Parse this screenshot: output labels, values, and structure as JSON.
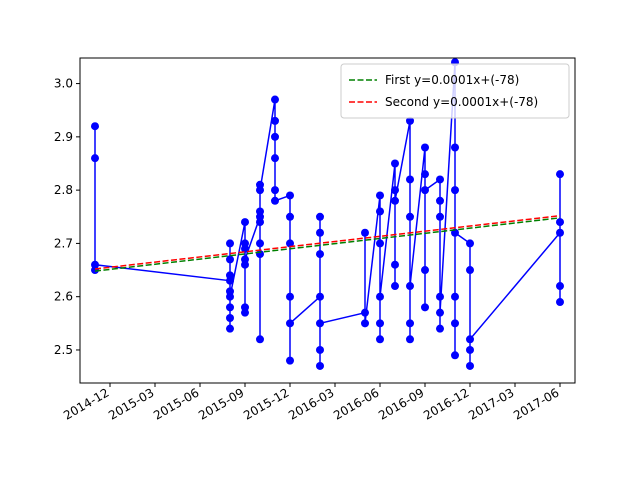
{
  "chart_data": {
    "type": "line",
    "xlim": [
      "2014-10",
      "2017-07"
    ],
    "ylim": [
      2.438,
      3.048
    ],
    "xticks": [
      "2014-12",
      "2015-03",
      "2015-06",
      "2015-09",
      "2015-12",
      "2016-03",
      "2016-06",
      "2016-09",
      "2016-12",
      "2017-03",
      "2017-06"
    ],
    "yticks": [
      2.5,
      2.6,
      2.7,
      2.8,
      2.9,
      {
        "value": 3,
        "label": "3.0"
      }
    ],
    "legend": "upper right",
    "series": [
      {
        "name": null,
        "color": "#0000ff",
        "style": "solid",
        "marker": true,
        "x": [
          "2014-11",
          "2014-11",
          "2014-11",
          "2014-11",
          "2015-08",
          "2015-08",
          "2015-08",
          "2015-08",
          "2015-08",
          "2015-08",
          "2015-08",
          "2015-08",
          "2015-08",
          "2015-09",
          "2015-09",
          "2015-09",
          "2015-09",
          "2015-09",
          "2015-09",
          "2015-09",
          "2015-10",
          "2015-10",
          "2015-10",
          "2015-10",
          "2015-10",
          "2015-10",
          "2015-10",
          "2015-10",
          "2015-11",
          "2015-11",
          "2015-11",
          "2015-11",
          "2015-11",
          "2015-11",
          "2015-12",
          "2015-12",
          "2015-12",
          "2015-12",
          "2015-12",
          "2015-12",
          "2016-02",
          "2016-02",
          "2016-02",
          "2016-02",
          "2016-02",
          "2016-02",
          "2016-02",
          "2016-05",
          "2016-05",
          "2016-05",
          "2016-06",
          "2016-06",
          "2016-06",
          "2016-06",
          "2016-06",
          "2016-06",
          "2016-07",
          "2016-07",
          "2016-07",
          "2016-07",
          "2016-07",
          "2016-08",
          "2016-08",
          "2016-08",
          "2016-08",
          "2016-08",
          "2016-08",
          "2016-09",
          "2016-09",
          "2016-09",
          "2016-09",
          "2016-09",
          "2016-10",
          "2016-10",
          "2016-10",
          "2016-10",
          "2016-10",
          "2016-10",
          "2016-11",
          "2016-11",
          "2016-11",
          "2016-11",
          "2016-11",
          "2016-11",
          "2016-11",
          "2016-12",
          "2016-12",
          "2016-12",
          "2016-12",
          "2016-12",
          "2017-06",
          "2017-06",
          "2017-06",
          "2017-06",
          "2017-06"
        ],
        "values": [
          2.86,
          2.92,
          2.65,
          2.66,
          2.63,
          2.64,
          2.67,
          2.7,
          2.61,
          2.54,
          2.58,
          2.56,
          2.6,
          2.74,
          2.66,
          2.69,
          2.57,
          2.58,
          2.7,
          2.67,
          2.75,
          2.81,
          2.68,
          2.76,
          2.7,
          2.52,
          2.74,
          2.8,
          2.97,
          2.8,
          2.93,
          2.86,
          2.9,
          2.78,
          2.79,
          2.6,
          2.7,
          2.48,
          2.75,
          2.55,
          2.6,
          2.75,
          2.47,
          2.68,
          2.5,
          2.72,
          2.55,
          2.57,
          2.72,
          2.55,
          2.79,
          2.55,
          2.76,
          2.52,
          2.7,
          2.6,
          2.85,
          2.62,
          2.8,
          2.66,
          2.78,
          2.93,
          2.55,
          2.82,
          2.52,
          2.75,
          2.62,
          2.88,
          2.58,
          2.83,
          2.65,
          2.8,
          2.82,
          2.54,
          2.78,
          2.6,
          2.75,
          2.57,
          3.04,
          2.49,
          2.88,
          2.6,
          2.8,
          2.55,
          2.72,
          2.7,
          2.47,
          2.65,
          2.5,
          2.52,
          2.72,
          2.83,
          2.59,
          2.74,
          2.62
        ]
      },
      {
        "name": "First y=0.0001x+(-78)",
        "color": "#008000",
        "style": "dashed",
        "marker": false,
        "x": [
          "2014-11",
          "2017-06"
        ],
        "values": [
          2.648,
          2.748
        ]
      },
      {
        "name": "Second y=0.0001x+(-78)",
        "color": "#ff0000",
        "style": "dashed",
        "marker": false,
        "x": [
          "2014-11",
          "2017-06"
        ],
        "values": [
          2.652,
          2.752
        ]
      }
    ]
  }
}
